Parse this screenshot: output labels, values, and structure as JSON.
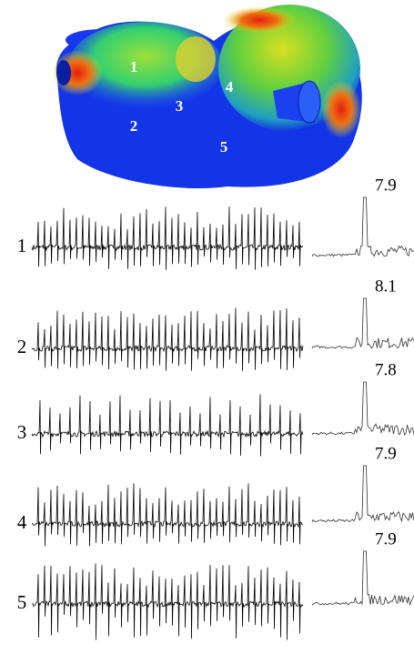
{
  "heart_labels": [
    "1",
    "2",
    "3",
    "4",
    "5"
  ],
  "traces": [
    {
      "label": "1",
      "peak": "7.9"
    },
    {
      "label": "2",
      "peak": "8.1"
    },
    {
      "label": "3",
      "peak": "7.8"
    },
    {
      "label": "4",
      "peak": "7.9"
    },
    {
      "label": "5",
      "peak": "7.9"
    }
  ]
}
